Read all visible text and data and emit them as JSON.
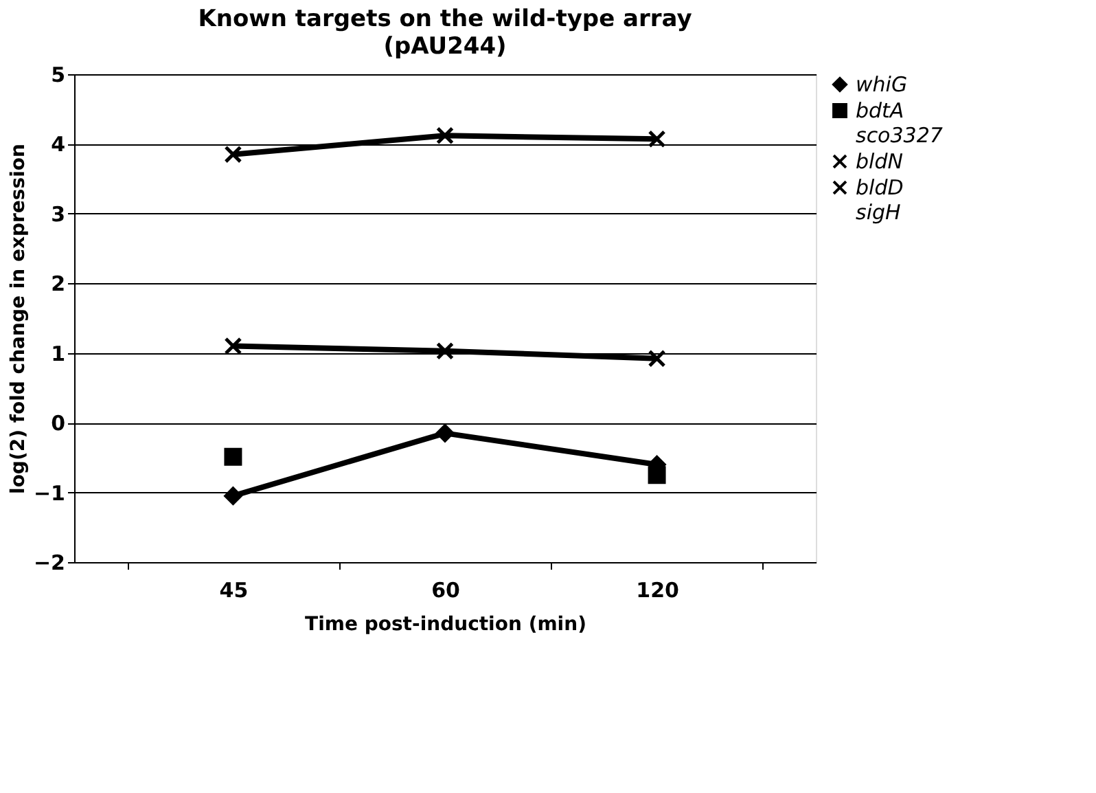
{
  "chart_data": {
    "type": "line",
    "title": "Known targets on the wild-type array",
    "subtitle": "(pAU244)",
    "xlabel": "Time post-induction (min)",
    "ylabel": "log(2) fold change in expression",
    "categories": [
      "45",
      "60",
      "120"
    ],
    "series": [
      {
        "name": "whiG",
        "color": "#000000",
        "marker": "diamond",
        "values": [
          -1.05,
          -0.15,
          -0.6
        ]
      },
      {
        "name": "bdtA",
        "color": "#000000",
        "marker": "square",
        "values": [
          -0.49,
          null,
          -0.75
        ]
      },
      {
        "name": "sco3327",
        "marker": "none",
        "values": [
          null,
          null,
          null
        ]
      },
      {
        "name": "bldN",
        "color": "#000000",
        "marker": "cross",
        "values": [
          1.1,
          1.03,
          0.92
        ]
      },
      {
        "name": "bldD",
        "color": "#000000",
        "marker": "cross",
        "values": [
          3.85,
          4.12,
          4.07
        ]
      },
      {
        "name": "sigH",
        "marker": "none",
        "values": [
          null,
          null,
          null
        ]
      }
    ],
    "ylim": [
      -2,
      5
    ],
    "yticks": [
      -2,
      -1,
      0,
      1,
      2,
      3,
      4,
      5
    ],
    "grid": "y",
    "legend": "right",
    "line_style": "solid"
  }
}
